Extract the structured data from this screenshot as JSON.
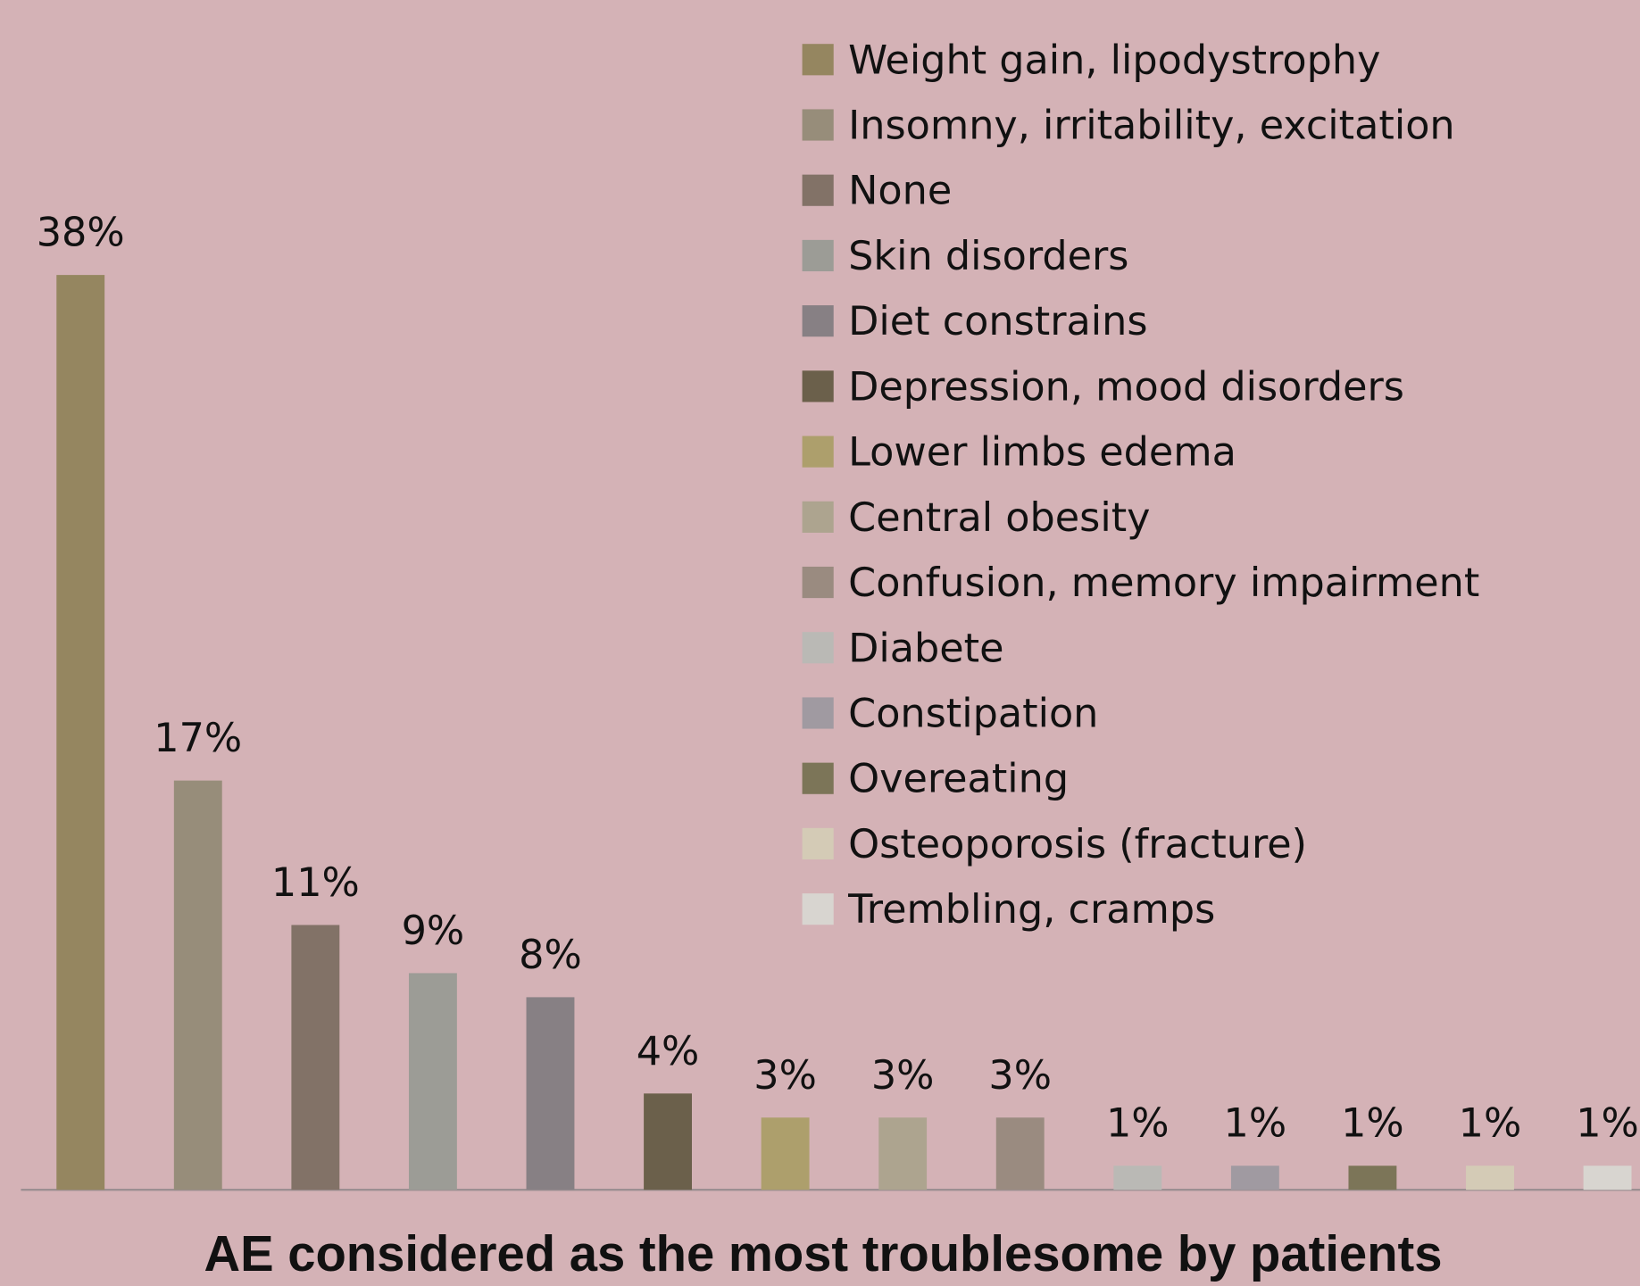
{
  "chart_data": {
    "type": "bar",
    "title": "AE considered as the most troublesome by patients",
    "categories": [
      "Weight gain, lipodystrophy",
      "Insomny, irritability, excitation",
      "None",
      "Skin disorders",
      "Diet constrains",
      "Depression, mood disorders",
      "Lower limbs edema",
      "Central obesity",
      "Confusion, memory impairment",
      "Diabete",
      "Constipation",
      "Overeating",
      "Osteoporosis (fracture)",
      "Trembling, cramps"
    ],
    "values": [
      38,
      17,
      11,
      9,
      8,
      4,
      3,
      3,
      3,
      1,
      1,
      1,
      1,
      1
    ],
    "value_labels": [
      "38%",
      "17%",
      "11%",
      "9%",
      "8%",
      "4%",
      "3%",
      "3%",
      "3%",
      "1%",
      "1%",
      "1%",
      "1%",
      "1%"
    ],
    "colors": [
      "#958660",
      "#978d7a",
      "#827267",
      "#9c9c96",
      "#878084",
      "#6b604b",
      "#ad9f6c",
      "#ada48f",
      "#9a8b80",
      "#bab9b5",
      "#a09aa1",
      "#7c7558",
      "#d4cbb6",
      "#d8d5d0"
    ],
    "legend": "top-right"
  }
}
